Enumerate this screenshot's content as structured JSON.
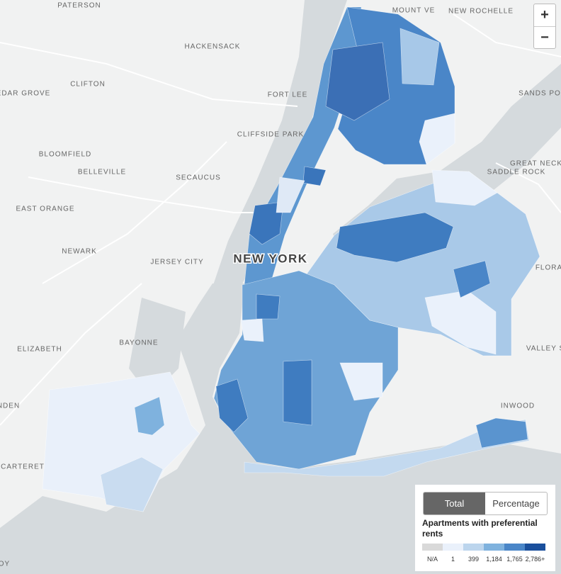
{
  "map": {
    "place_labels": [
      "PATERSON",
      "MOUNT VE",
      "NEW ROCHELLE",
      "HACKENSACK",
      "CLIFTON",
      "EDAR GROVE",
      "FORT LEE",
      "SANDS PO",
      "CLIFFSIDE PARK",
      "BLOOMFIELD",
      "GREAT NECK",
      "SADDLE ROCK",
      "BELLEVILLE",
      "SECAUCUS",
      "EAST ORANGE",
      "NEWARK",
      "JERSEY CITY",
      "FLORA",
      "BAYONNE",
      "ELIZABETH",
      "VALLEY S",
      "INWOOD",
      "NDEN",
      "CARTERET",
      "OY"
    ],
    "city_label": "NEW YORK"
  },
  "controls": {
    "zoom_in": "+",
    "zoom_out": "−"
  },
  "legend": {
    "tabs": [
      "Total",
      "Percentage"
    ],
    "active_tab": "Total",
    "title": "Apartments with preferential rents",
    "labels": [
      "N/A",
      "1",
      "399",
      "1,184",
      "1,765",
      "2,786+"
    ],
    "colors": [
      "#d9d9d9",
      "#eaf1fb",
      "#bcd5ed",
      "#7fb2de",
      "#4a86c8",
      "#1a4f9c"
    ]
  }
}
